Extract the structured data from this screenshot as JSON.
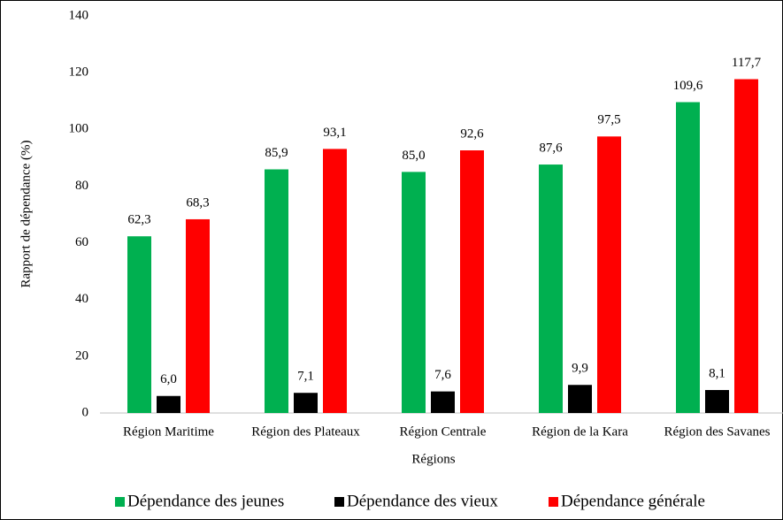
{
  "chart_data": {
    "type": "bar",
    "x_label": "Régions",
    "y_label": "Rapport de dépendance (%)",
    "categories": [
      "Région Maritime",
      "Région des Plateaux",
      "Région Centrale",
      "Région de la Kara",
      "Région des Savanes"
    ],
    "series": [
      {
        "name": "Dépendance des jeunes",
        "color": "#00b050",
        "values": [
          62.3,
          85.9,
          85.0,
          87.6,
          109.6
        ],
        "value_labels": [
          "62,3",
          "85,9",
          "85,0",
          "87,6",
          "109,6"
        ]
      },
      {
        "name": "Dépendance des vieux",
        "color": "#000000",
        "values": [
          6.0,
          7.1,
          7.6,
          9.9,
          8.1
        ],
        "value_labels": [
          "6,0",
          "7,1",
          "7,6",
          "9,9",
          "8,1"
        ]
      },
      {
        "name": "Dépendance générale",
        "color": "#ff0000",
        "values": [
          68.3,
          93.1,
          92.6,
          97.5,
          117.7
        ],
        "value_labels": [
          "68,3",
          "93,1",
          "92,6",
          "97,5",
          "117,7"
        ]
      }
    ],
    "ylim": [
      0,
      140
    ],
    "yticks": [
      0,
      20,
      40,
      60,
      80,
      100,
      120,
      140
    ],
    "grid": false,
    "legend": "bottom"
  }
}
